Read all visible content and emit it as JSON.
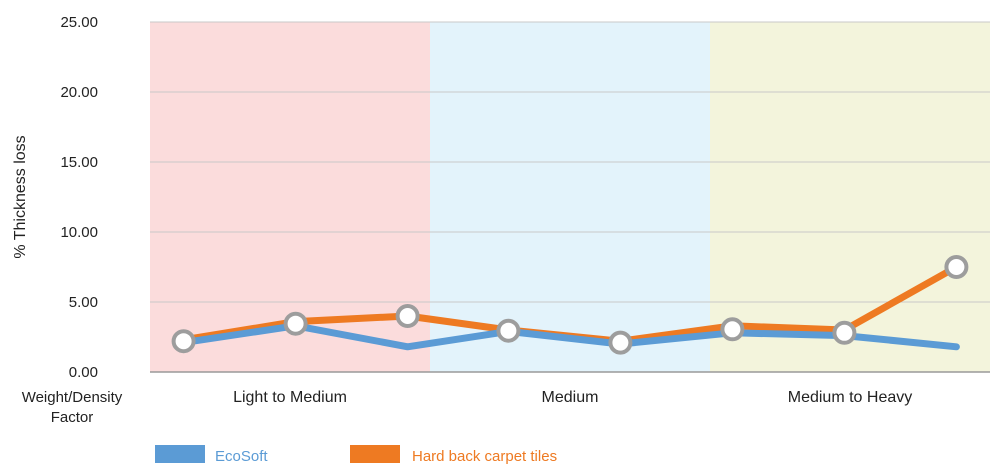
{
  "chart_data": {
    "type": "line",
    "ylabel": "% Thickness loss",
    "xlabel": "Weight/Density Factor",
    "ylim": [
      0,
      25
    ],
    "yticks": [
      "0.00",
      "5.00",
      "10.00",
      "15.00",
      "20.00",
      "25.00"
    ],
    "grid": true,
    "legend_position": "bottom",
    "bands": [
      {
        "label": "Light to Medium",
        "from": 0,
        "to": 2.5,
        "color": "#fbdcdc"
      },
      {
        "label": "Medium",
        "from": 2.5,
        "to": 5,
        "color": "#e3f3fb"
      },
      {
        "label": "Medium to Heavy",
        "from": 5,
        "to": 7.5,
        "color": "#f3f4dc"
      }
    ],
    "x": [
      0.3,
      1.3,
      2.3,
      3.2,
      4.2,
      5.2,
      6.2,
      7.2
    ],
    "series": [
      {
        "name": "Hard back carpet tiles",
        "color": "#ee7a22",
        "values": [
          2.3,
          3.6,
          4.0,
          3.0,
          2.2,
          3.3,
          3.0,
          7.5
        ]
      },
      {
        "name": "EcoSoft",
        "color": "#5b9bd5",
        "values": [
          2.1,
          3.3,
          1.8,
          2.9,
          2.0,
          2.8,
          2.6,
          1.8
        ]
      }
    ]
  }
}
